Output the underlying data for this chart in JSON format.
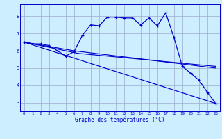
{
  "xlabel": "Graphe des températures (°C)",
  "bg_color": "#cceeff",
  "grid_color": "#99aacc",
  "line_color": "#0000cc",
  "xlim": [
    -0.5,
    23.5
  ],
  "ylim": [
    2.5,
    8.7
  ],
  "yticks": [
    3,
    4,
    5,
    6,
    7,
    8
  ],
  "xticks": [
    0,
    1,
    2,
    3,
    4,
    5,
    6,
    7,
    8,
    9,
    10,
    11,
    12,
    13,
    14,
    15,
    16,
    17,
    18,
    19,
    20,
    21,
    22,
    23
  ],
  "curves": [
    {
      "x": [
        0,
        1,
        2,
        3,
        4,
        5,
        6,
        7,
        8,
        9,
        10,
        11,
        12,
        13,
        14,
        15,
        16,
        17,
        18,
        19,
        20,
        21,
        22,
        23
      ],
      "y": [
        6.5,
        6.4,
        6.4,
        6.3,
        6.0,
        5.7,
        5.95,
        6.9,
        7.5,
        7.45,
        7.95,
        7.95,
        7.9,
        7.9,
        7.5,
        7.9,
        7.45,
        8.2,
        6.75,
        5.1,
        4.7,
        4.3,
        3.6,
        2.95
      ],
      "marker": true
    },
    {
      "x": [
        0,
        23
      ],
      "y": [
        6.5,
        2.95
      ],
      "marker": false
    },
    {
      "x": [
        0,
        6.5,
        23
      ],
      "y": [
        6.5,
        5.85,
        5.1
      ],
      "marker": false
    },
    {
      "x": [
        0,
        6.0,
        23
      ],
      "y": [
        6.5,
        6.0,
        5.0
      ],
      "marker": false
    }
  ]
}
